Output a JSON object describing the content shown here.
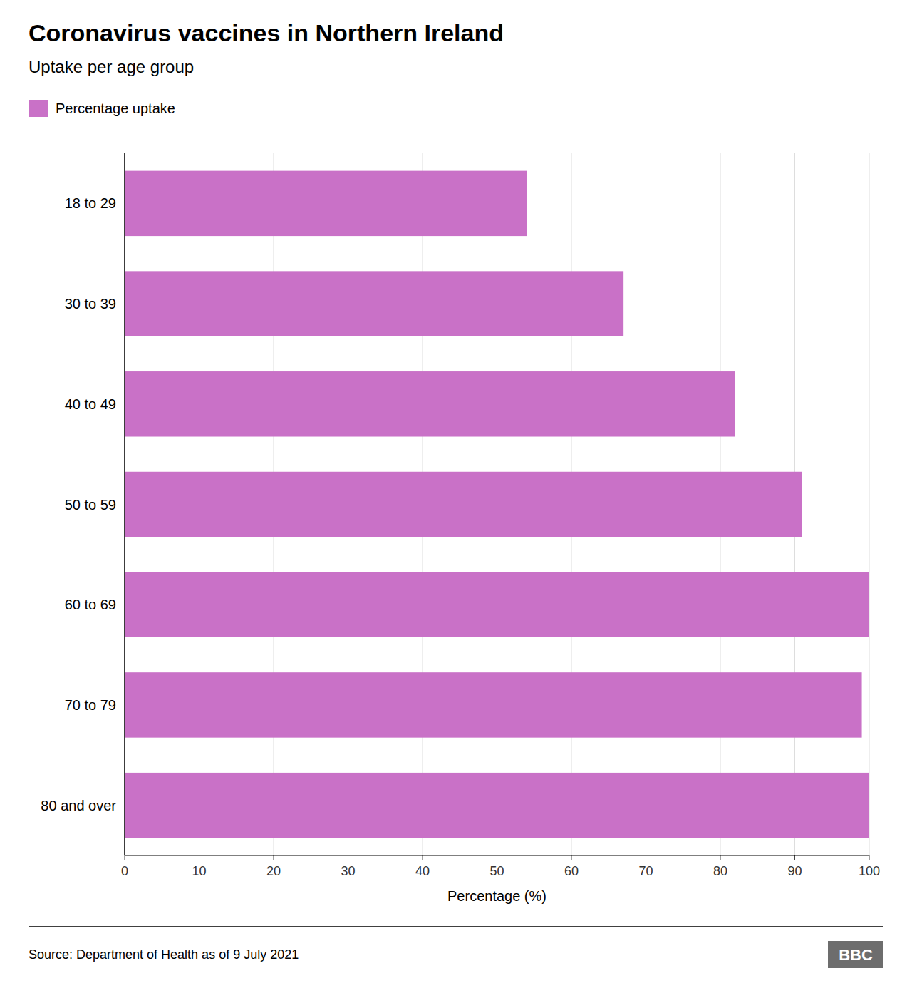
{
  "chart_data": {
    "type": "bar",
    "orientation": "horizontal",
    "title": "Coronavirus vaccines in Northern Ireland",
    "subtitle": "Uptake per age group",
    "xlabel": "Percentage (%)",
    "categories": [
      "18 to 29",
      "30 to 39",
      "40 to 49",
      "50 to 59",
      "60 to 69",
      "70 to 79",
      "80 and over"
    ],
    "series": [
      {
        "name": "Percentage uptake",
        "color": "#c971c7",
        "values": [
          54,
          67,
          82,
          91,
          100,
          99,
          100
        ]
      }
    ],
    "xlim": [
      0,
      100
    ],
    "xticks": [
      0,
      10,
      20,
      30,
      40,
      50,
      60,
      70,
      80,
      90,
      100
    ],
    "grid": true,
    "legend": "top-left",
    "annotations": [
      "Source: Department of Health as of 9 July 2021",
      "BBC"
    ]
  }
}
